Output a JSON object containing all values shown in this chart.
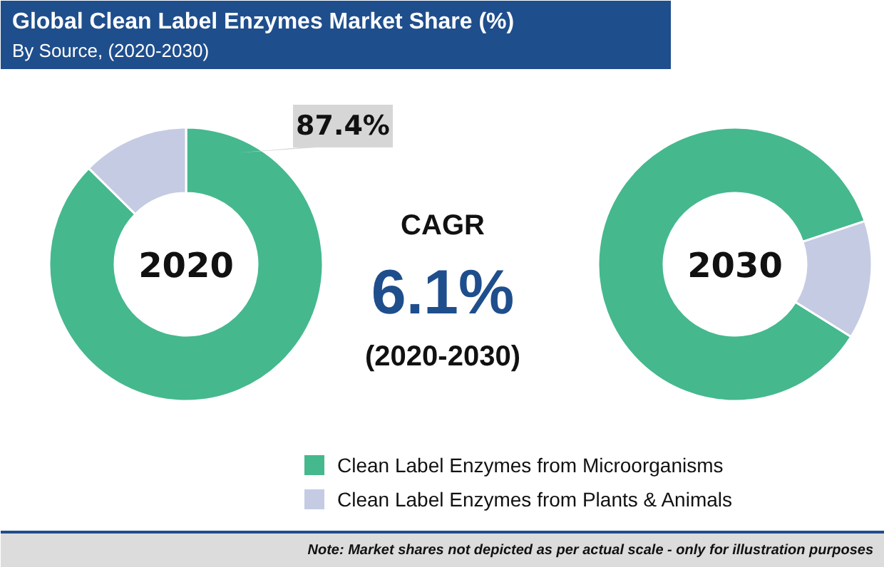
{
  "chart_data": [
    {
      "type": "other",
      "title": "Global Clean Label Enzymes Market Share (%)",
      "subtitle": "By Source, (2020-2030)",
      "annotations": [
        "CAGR",
        "6.1%",
        "(2020-2030)",
        "Note: Market shares not depicted as per actual scale - only for illustration purposes"
      ]
    },
    {
      "type": "donut",
      "title": "2020",
      "categories": [
        "Clean Label Enzymes from Microorganisms",
        "Clean Label Enzymes from Plants & Animals"
      ],
      "values": [
        87.4,
        12.6
      ],
      "colors": [
        "#45b88e",
        "#c5cbe3"
      ],
      "value_labels": [
        "87.4%",
        null
      ],
      "legend": "bottom"
    },
    {
      "type": "donut",
      "title": "2030",
      "categories": [
        null,
        null
      ],
      "values": [
        86,
        14
      ],
      "colors": [
        "#45b88e",
        "#c5cbe3"
      ]
    }
  ]
}
